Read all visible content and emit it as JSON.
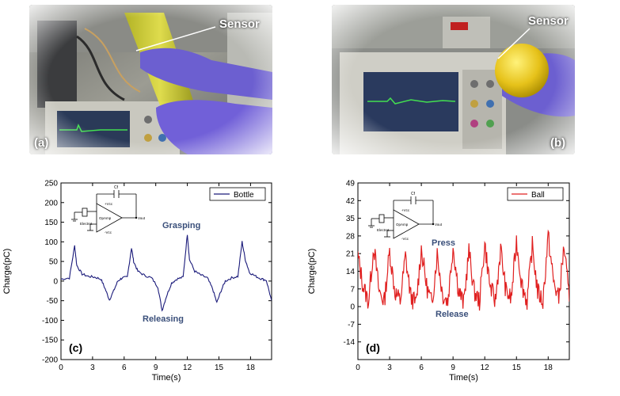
{
  "photos": {
    "a": {
      "panel_label": "(a)",
      "sensor_label": "Sensor"
    },
    "b": {
      "panel_label": "(b)",
      "sensor_label": "Sensor"
    }
  },
  "chart_data": [
    {
      "type": "line",
      "panel_label": "(c)",
      "xlabel": "Time(s)",
      "ylabel": "Charge(pC)",
      "xlim": [
        0,
        20
      ],
      "ylim": [
        -200,
        250
      ],
      "x_ticks": [
        0,
        3,
        6,
        9,
        12,
        15,
        18
      ],
      "y_ticks": [
        -200,
        -150,
        -100,
        -50,
        0,
        50,
        100,
        150,
        200,
        250
      ],
      "legend_position": "top-right",
      "color": "#1a1a7a",
      "series": [
        {
          "name": "Bottle",
          "x": [
            0,
            0.8,
            1.3,
            1.5,
            2.0,
            2.6,
            3.2,
            3.8,
            4.2,
            4.6,
            5.0,
            5.4,
            5.8,
            6.3,
            6.7,
            6.9,
            7.3,
            7.9,
            8.6,
            9.2,
            9.6,
            10.0,
            10.5,
            11.0,
            11.6,
            12.0,
            12.2,
            12.7,
            13.3,
            13.9,
            14.4,
            14.8,
            15.2,
            15.6,
            16.2,
            16.8,
            17.2,
            17.5,
            17.9,
            18.5,
            19.0,
            19.5,
            20.0
          ],
          "y": [
            5,
            8,
            90,
            40,
            18,
            12,
            10,
            5,
            -20,
            -48,
            -25,
            0,
            8,
            10,
            85,
            50,
            25,
            15,
            8,
            -15,
            -75,
            -40,
            -5,
            5,
            10,
            120,
            55,
            25,
            15,
            8,
            -20,
            -55,
            -25,
            0,
            8,
            12,
            100,
            55,
            22,
            12,
            6,
            2,
            -50
          ]
        }
      ],
      "annotations": [
        "Grasping",
        "Releasing"
      ],
      "inset": {
        "labels": [
          "Cf",
          "+Vcc",
          "Electret",
          "OpAmp",
          "Vout",
          "-Vcc"
        ]
      }
    },
    {
      "type": "line",
      "panel_label": "(d)",
      "xlabel": "Time(s)",
      "ylabel": "Charge(pC)",
      "xlim": [
        0,
        20
      ],
      "ylim": [
        -21,
        49
      ],
      "x_ticks": [
        0,
        3,
        6,
        9,
        12,
        15,
        18
      ],
      "y_ticks": [
        -14,
        -7,
        0,
        7,
        14,
        21,
        28,
        35,
        42,
        49
      ],
      "legend_position": "top-right",
      "color": "#e02020",
      "series": [
        {
          "name": "Ball",
          "x": [
            0,
            0.5,
            1.0,
            1.5,
            2.0,
            2.5,
            3.0,
            3.5,
            4.0,
            4.5,
            5.0,
            5.5,
            6.0,
            6.5,
            7.0,
            7.5,
            8.0,
            8.5,
            9.0,
            9.5,
            10.0,
            10.5,
            11.0,
            11.5,
            12.0,
            12.5,
            13.0,
            13.5,
            14.0,
            14.5,
            15.0,
            15.5,
            16.0,
            16.5,
            17.0,
            17.5,
            18.0,
            18.5,
            19.0,
            19.5,
            20.0
          ],
          "y": [
            20,
            8,
            2,
            24,
            6,
            2,
            22,
            6,
            2,
            20,
            4,
            1,
            23,
            8,
            1,
            21,
            5,
            2,
            24,
            7,
            1,
            22,
            6,
            2,
            25,
            8,
            2,
            23,
            6,
            3,
            26,
            9,
            2,
            24,
            6,
            2,
            28,
            10,
            3,
            24,
            2
          ]
        }
      ],
      "annotations": [
        "Press",
        "Release"
      ],
      "inset": {
        "labels": [
          "Cf",
          "+Vcc",
          "Electret",
          "OpAmp",
          "Vout",
          "-Vcc"
        ]
      }
    }
  ]
}
